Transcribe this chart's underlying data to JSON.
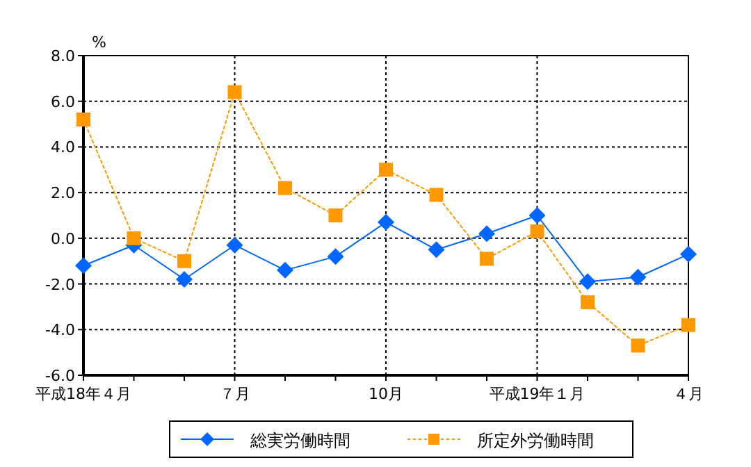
{
  "chart_data": {
    "type": "line",
    "ylabel": "%",
    "categories": [
      "平成18年４月",
      null,
      null,
      "７月",
      null,
      null,
      "10月",
      null,
      null,
      "平成19年１月",
      null,
      null,
      "４月"
    ],
    "series": [
      {
        "name": "総実労働時間",
        "color": "#0066ff",
        "marker": "diamond",
        "line_style": "solid",
        "values": [
          -1.2,
          -0.3,
          -1.8,
          -0.3,
          -1.4,
          -0.8,
          0.7,
          -0.5,
          0.2,
          1.0,
          -1.9,
          -1.7,
          -0.7
        ]
      },
      {
        "name": "所定外労働時間",
        "color": "#ff9900",
        "marker": "square",
        "line_style": "dotted",
        "values": [
          5.2,
          0.0,
          -1.0,
          6.4,
          2.2,
          1.0,
          3.0,
          1.9,
          -0.9,
          0.3,
          -2.8,
          -4.7,
          -3.8
        ]
      }
    ],
    "ylim": [
      -6,
      8
    ],
    "yticks": [
      {
        "value": -6,
        "label": "-6.0"
      },
      {
        "value": -4,
        "label": "-4.0"
      },
      {
        "value": -2,
        "label": "-2.0"
      },
      {
        "value": 0,
        "label": "0.0"
      },
      {
        "value": 2,
        "label": "2.0"
      },
      {
        "value": 4,
        "label": "4.0"
      },
      {
        "value": 6,
        "label": "6.0"
      },
      {
        "value": 8,
        "label": "8.0"
      }
    ],
    "grid": true,
    "legend": "bottom"
  }
}
